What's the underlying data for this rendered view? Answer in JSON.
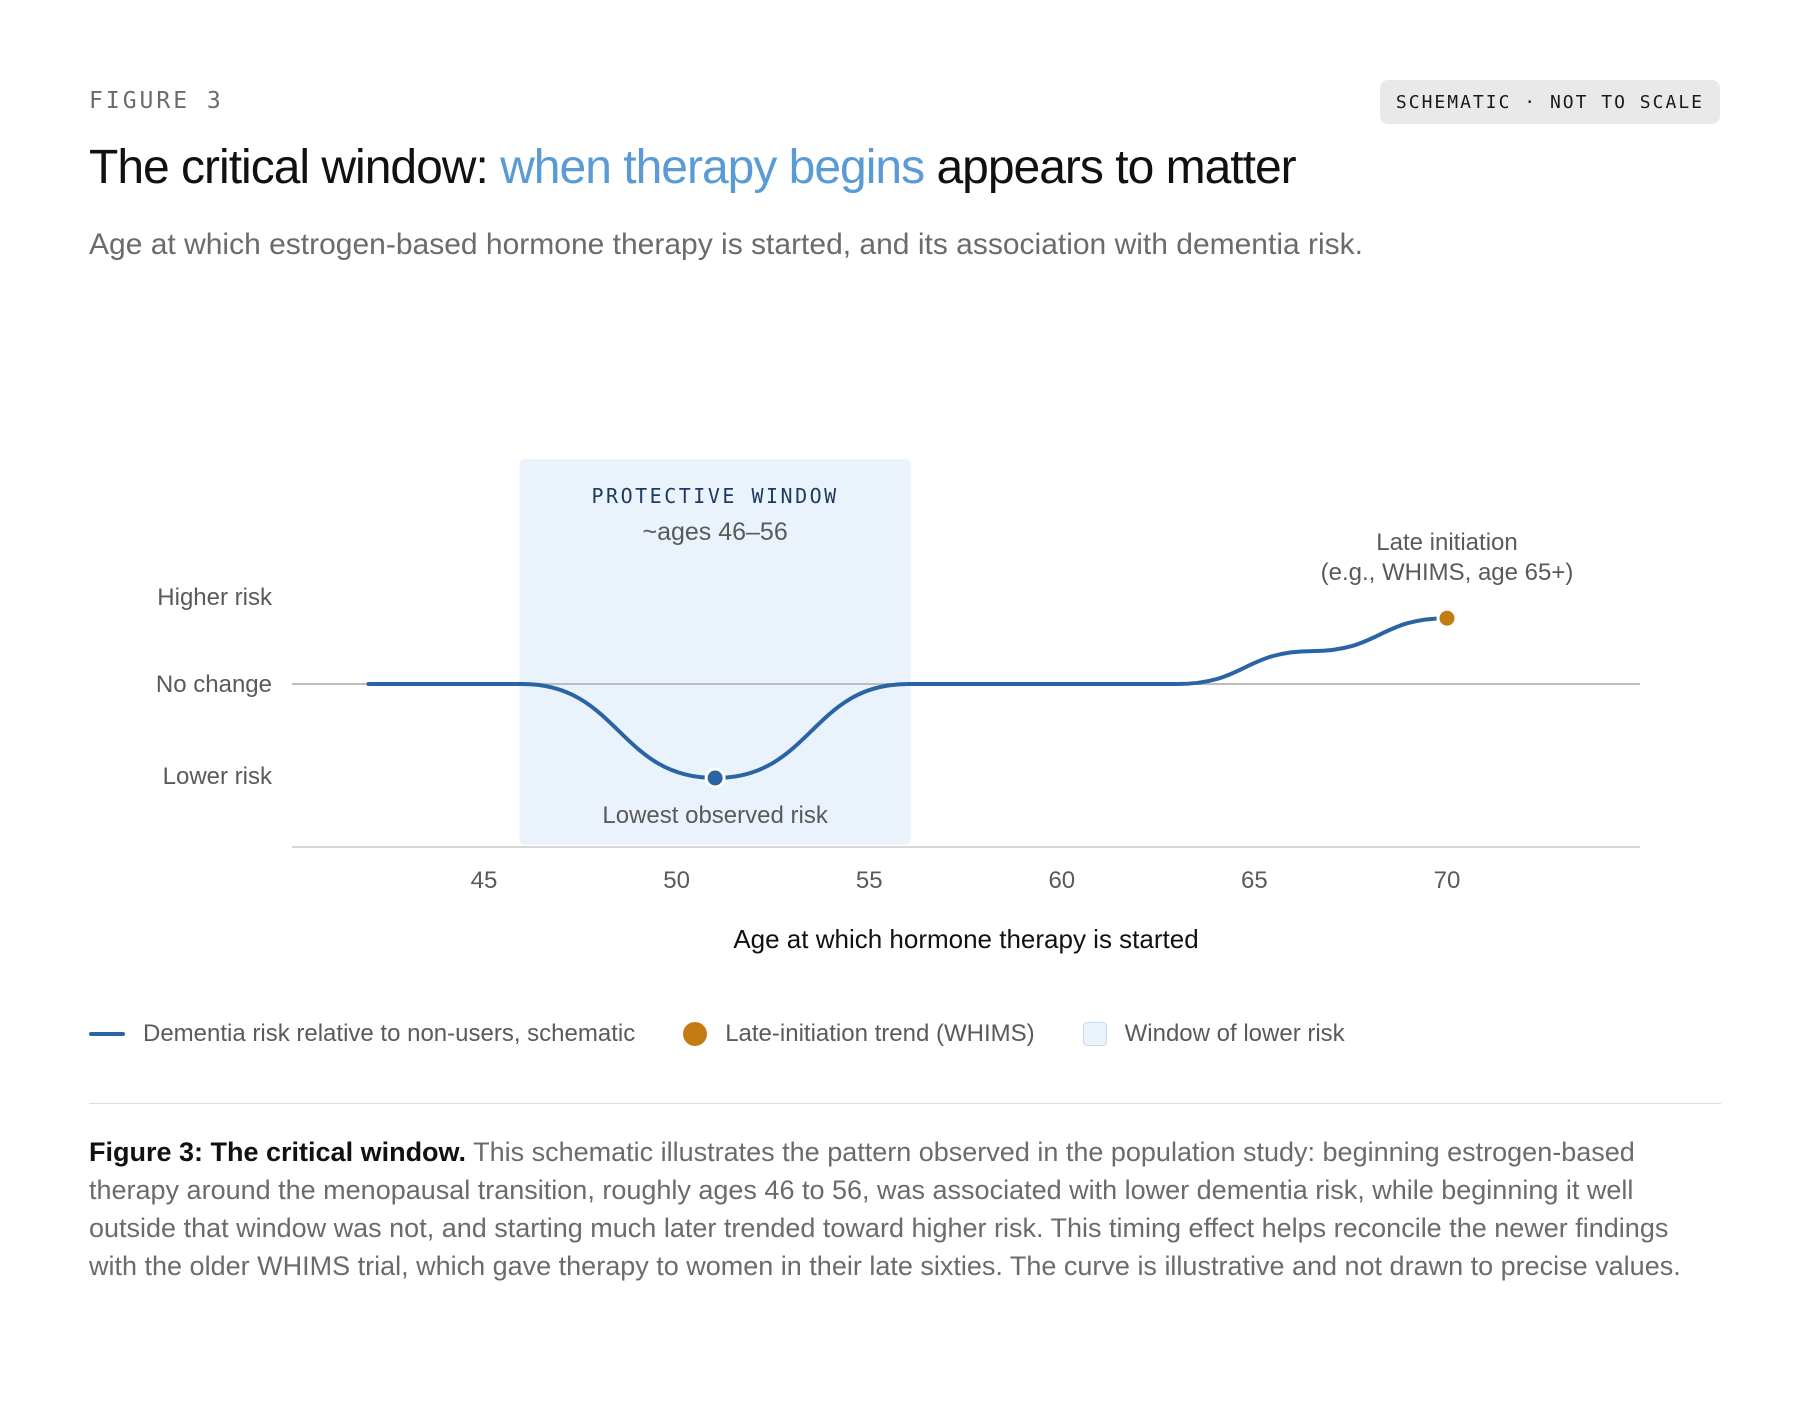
{
  "figure_label": "FIGURE 3",
  "badge": "SCHEMATIC · NOT TO SCALE",
  "title": {
    "prefix": "The critical window: ",
    "accent": "when therapy begins",
    "suffix": " appears to matter",
    "accent_color": "#5a9bd6"
  },
  "subtitle": "Age at which estrogen-based hormone therapy is started, and its association with dementia risk.",
  "chart_data": {
    "type": "line",
    "xlabel": "Age at which hormone therapy is started",
    "x_ticks": [
      45,
      50,
      55,
      60,
      65,
      70
    ],
    "xlim": [
      40,
      75
    ],
    "y_categories": [
      "Higher risk",
      "No change",
      "Lower risk"
    ],
    "reference_line": "No change",
    "series": [
      {
        "name": "Dementia risk relative to non-users, schematic",
        "color": "#2a64a4",
        "points": [
          {
            "x": 42,
            "y": 0
          },
          {
            "x": 46,
            "y": 0
          },
          {
            "x": 51,
            "y": -1
          },
          {
            "x": 56,
            "y": 0
          },
          {
            "x": 63,
            "y": 0
          },
          {
            "x": 66.5,
            "y": 0.35
          },
          {
            "x": 70,
            "y": 0.7
          }
        ]
      }
    ],
    "highlight_window": {
      "x_range": [
        46,
        56
      ],
      "title": "PROTECTIVE WINDOW",
      "subtitle": "~ages 46–56",
      "color": "#eaf2fb"
    },
    "annotations": [
      {
        "x": 51,
        "y": -1,
        "label": "Lowest observed risk",
        "color": "#2a64a4"
      },
      {
        "x": 70,
        "y": 0.7,
        "label_lines": [
          "Late initiation",
          "(e.g., WHIMS, age 65+)"
        ],
        "color": "#c47b12"
      }
    ],
    "legend": [
      {
        "type": "line",
        "label": "Dementia risk relative to non-users, schematic",
        "color": "#2a64a4"
      },
      {
        "type": "dot",
        "label": "Late-initiation trend (WHIMS)",
        "color": "#c47b12"
      },
      {
        "type": "box",
        "label": "Window of lower risk",
        "color": "#eaf2fb"
      }
    ]
  },
  "caption": {
    "bold": "Figure 3: The critical window.",
    "text": " This schematic illustrates the pattern observed in the population study: beginning estrogen-based therapy around the menopausal transition, roughly ages 46 to 56, was associated with lower dementia risk, while beginning it well outside that window was not, and starting much later trended toward higher risk. This timing effect helps reconcile the newer findings with the older WHIMS trial, which gave therapy to women in their late sixties. The curve is illustrative and not drawn to precise values."
  }
}
